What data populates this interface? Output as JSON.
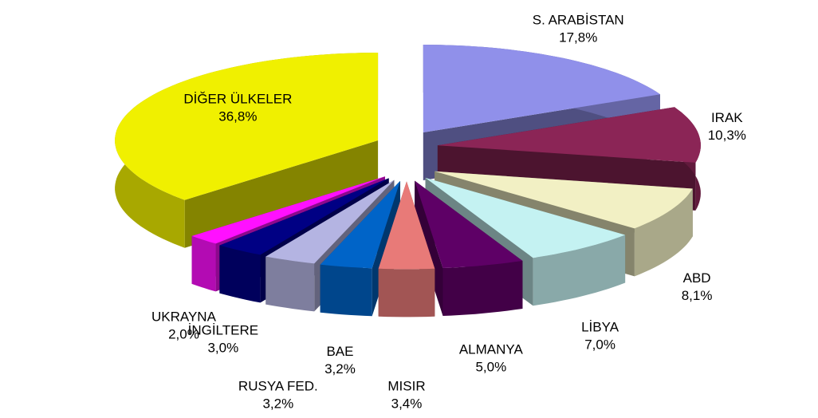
{
  "chart_data": {
    "type": "pie",
    "categories": [
      "S. ARABİSTAN",
      "IRAK",
      "ABD",
      "LİBYA",
      "ALMANYA",
      "MISIR",
      "BAE",
      "RUSYA FED.",
      "İNGİLTERE",
      "UKRAYNA",
      "DİĞER ÜLKELER"
    ],
    "values": [
      17.8,
      10.3,
      8.1,
      7.0,
      5.0,
      3.4,
      3.2,
      3.2,
      3.0,
      2.0,
      36.8
    ],
    "value_labels": [
      "17,8%",
      "10,3%",
      "8,1%",
      "7,0%",
      "5,0%",
      "3,4%",
      "3,2%",
      "3,2%",
      "3,0%",
      "2,0%",
      "36,8%"
    ],
    "colors": [
      "#9090ea",
      "#8b2556",
      "#f2f0c4",
      "#c4f2f2",
      "#5e0066",
      "#e87a78",
      "#0064c8",
      "#b4b4e2",
      "#000084",
      "#ff10ff",
      "#f0f000"
    ]
  }
}
